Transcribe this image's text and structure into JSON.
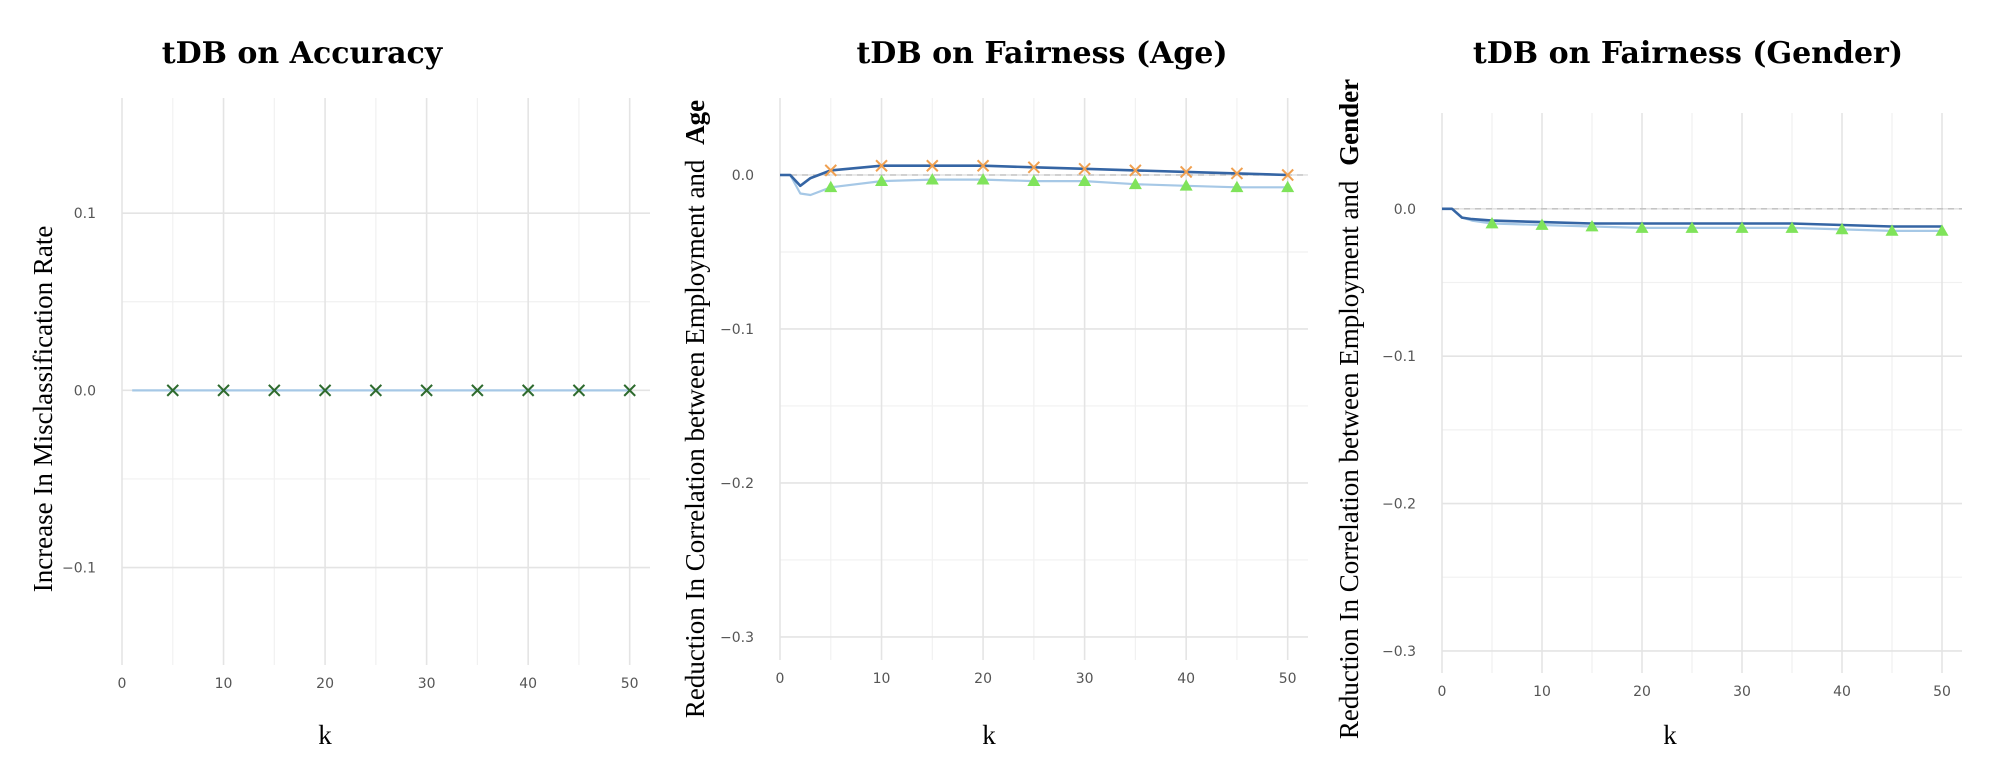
{
  "chart_data": [
    {
      "type": "line",
      "title": "tDB on Accuracy",
      "xlabel": "k",
      "ylabel": "Increase In Misclassification Rate",
      "xlim": [
        0,
        52
      ],
      "ylim": [
        -0.155,
        0.165
      ],
      "x_ticks": [
        "0",
        "10",
        "20",
        "30",
        "40",
        "50"
      ],
      "y_ticks": [
        "0.1",
        "0.0",
        "−0.1"
      ],
      "y_tick_values": [
        0.1,
        0.0,
        -0.1
      ],
      "grid": true,
      "series": [
        {
          "color": "#a6c8e6",
          "marker": "x",
          "marker_color": "#2e6b2e",
          "x": [
            1,
            5,
            10,
            15,
            20,
            25,
            30,
            35,
            40,
            45,
            50
          ],
          "values": [
            0,
            0,
            0,
            0,
            0,
            0,
            0,
            0,
            0,
            0,
            0
          ],
          "marker_x": [
            5,
            10,
            15,
            20,
            25,
            30,
            35,
            40,
            45,
            50
          ]
        }
      ]
    },
    {
      "type": "line",
      "title": "tDB on Fairness (Age)",
      "xlabel": "k",
      "ylabel": "Reduction In Correlation between Employment and",
      "ylabel_bold": "Age",
      "xlim": [
        0,
        52
      ],
      "ylim": [
        -0.315,
        0.05
      ],
      "x_ticks": [
        "0",
        "10",
        "20",
        "30",
        "40",
        "50"
      ],
      "y_ticks": [
        "0.0",
        "−0.1",
        "−0.2",
        "−0.3"
      ],
      "y_tick_values": [
        0.0,
        -0.1,
        -0.2,
        -0.3
      ],
      "grid": true,
      "zero_line": true,
      "series": [
        {
          "color": "#3565a4",
          "marker": "x",
          "marker_color": "#f0a050",
          "x": [
            0,
            1,
            2,
            3,
            5,
            10,
            15,
            20,
            25,
            30,
            35,
            40,
            45,
            50
          ],
          "values": [
            0,
            0,
            -0.007,
            -0.002,
            0.003,
            0.006,
            0.006,
            0.006,
            0.005,
            0.004,
            0.003,
            0.002,
            0.001,
            0.0
          ],
          "marker_x": [
            5,
            10,
            15,
            20,
            25,
            30,
            35,
            40,
            45,
            50
          ]
        },
        {
          "color": "#a6c8e6",
          "marker": "triangle",
          "marker_color": "#7fe35a",
          "x": [
            0,
            1,
            2,
            3,
            5,
            10,
            15,
            20,
            25,
            30,
            35,
            40,
            45,
            50
          ],
          "values": [
            0,
            0,
            -0.012,
            -0.013,
            -0.008,
            -0.004,
            -0.003,
            -0.003,
            -0.004,
            -0.004,
            -0.006,
            -0.007,
            -0.008,
            -0.008
          ],
          "marker_x": [
            5,
            10,
            15,
            20,
            25,
            30,
            35,
            40,
            45,
            50
          ]
        }
      ]
    },
    {
      "type": "line",
      "title": "tDB on Fairness (Gender)",
      "xlabel": "k",
      "ylabel": "Reduction In Correlation between Employment and",
      "ylabel_bold": "Gender",
      "xlim": [
        0,
        52
      ],
      "ylim": [
        -0.315,
        0.065
      ],
      "x_ticks": [
        "0",
        "10",
        "20",
        "30",
        "40",
        "50"
      ],
      "y_ticks": [
        "0.0",
        "−0.1",
        "−0.2",
        "−0.3"
      ],
      "y_tick_values": [
        0.0,
        -0.1,
        -0.2,
        -0.3
      ],
      "grid": true,
      "zero_line": true,
      "series": [
        {
          "color": "#3565a4",
          "marker": "none",
          "x": [
            0,
            1,
            2,
            3,
            5,
            10,
            15,
            20,
            25,
            30,
            35,
            40,
            45,
            50
          ],
          "values": [
            0,
            0,
            -0.006,
            -0.007,
            -0.008,
            -0.009,
            -0.01,
            -0.01,
            -0.01,
            -0.01,
            -0.01,
            -0.011,
            -0.012,
            -0.012
          ],
          "marker_x": []
        },
        {
          "color": "#a6c8e6",
          "marker": "triangle",
          "marker_color": "#7fe35a",
          "x": [
            0,
            1,
            2,
            3,
            5,
            10,
            15,
            20,
            25,
            30,
            35,
            40,
            45,
            50
          ],
          "values": [
            0,
            0,
            -0.006,
            -0.008,
            -0.01,
            -0.011,
            -0.012,
            -0.013,
            -0.013,
            -0.013,
            -0.013,
            -0.014,
            -0.015,
            -0.015
          ],
          "marker_x": [
            5,
            10,
            15,
            20,
            25,
            30,
            35,
            40,
            45,
            50
          ]
        }
      ]
    }
  ]
}
